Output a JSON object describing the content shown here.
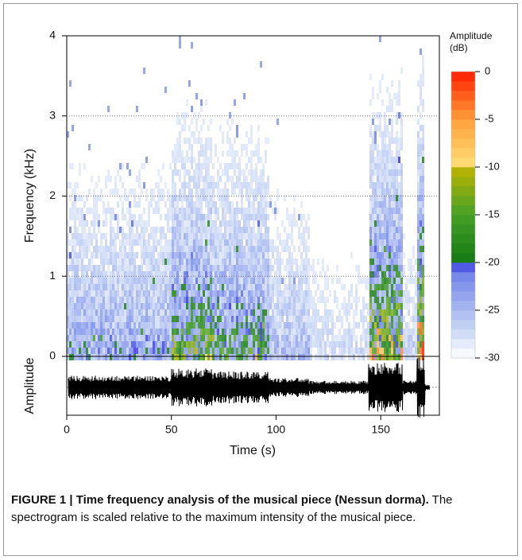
{
  "chart_data": {
    "type": "spectrogram",
    "xlabel": "Time (s)",
    "ylabel": "Frequency (kHz)",
    "amplitude_label": "Amplitude",
    "xlim": [
      0,
      178
    ],
    "xticks": [
      0,
      50,
      100,
      150
    ],
    "ylim": [
      0,
      4
    ],
    "yticks": [
      0,
      1,
      2,
      3,
      4
    ],
    "grid": true,
    "colorbar_label": "Amplitude (dB)",
    "clim": [
      -30,
      0
    ],
    "cticks": [
      0,
      -5,
      -10,
      -15,
      -20,
      -25,
      -30
    ]
  },
  "caption": {
    "label": "FIGURE 1 | Time frequency analysis of the musical piece (Nessun dorma).",
    "text": "The spectrogram is scaled relative to the maximum intensity of the musical piece."
  }
}
